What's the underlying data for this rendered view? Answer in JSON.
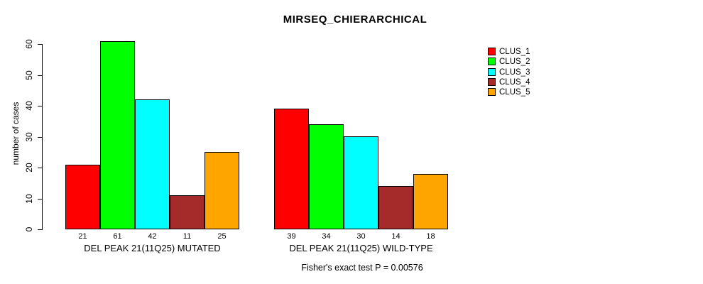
{
  "figure": {
    "title": "MIRSEQ_CHIERARCHICAL",
    "annotation": "Fisher's exact test P = 0.00576"
  },
  "chart_data": {
    "type": "bar",
    "title": "MIRSEQ_CHIERARCHICAL",
    "xlabel": "",
    "ylabel": "number of cases",
    "ylim": [
      0,
      60
    ],
    "yticks": [
      0,
      10,
      20,
      30,
      40,
      50,
      60
    ],
    "grid": false,
    "legend_position": "top-right",
    "series_names": [
      "CLUS_1",
      "CLUS_2",
      "CLUS_3",
      "CLUS_4",
      "CLUS_5"
    ],
    "series_colors": [
      "#ff0000",
      "#00ff00",
      "#00ffff",
      "#a52a2a",
      "#ffa500"
    ],
    "groups": [
      {
        "label": "DEL PEAK 21(11Q25) MUTATED",
        "values": [
          21,
          61,
          42,
          11,
          25
        ]
      },
      {
        "label": "DEL PEAK 21(11Q25) WILD-TYPE",
        "values": [
          39,
          34,
          30,
          14,
          18
        ]
      }
    ],
    "bar_value_labels_shown": true,
    "annotation": "Fisher's exact test P = 0.00576"
  }
}
